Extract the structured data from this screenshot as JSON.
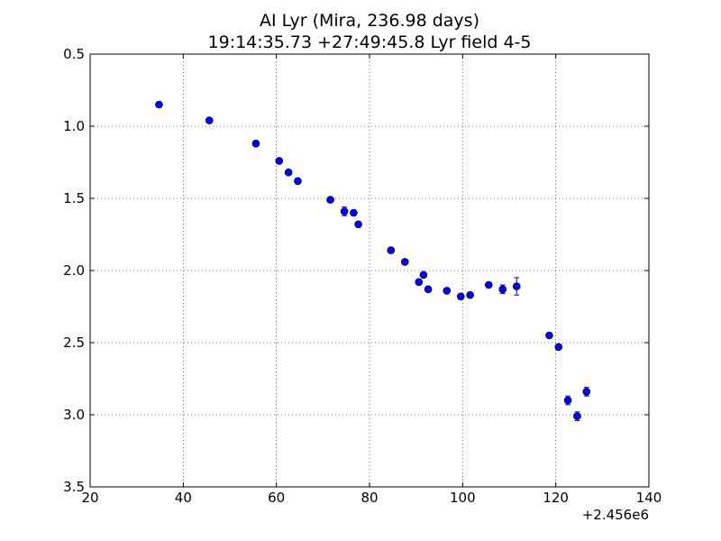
{
  "chart_data": {
    "type": "scatter",
    "title": "AI Lyr (Mira, 236.98 days)",
    "subtitle": "19:14:35.73 +27:49:45.8 Lyr field 4-5",
    "xlim": [
      20,
      140
    ],
    "ylim": [
      0.5,
      3.5
    ],
    "y_inverted": true,
    "x_offset_label": "+2.456e6",
    "x_ticks": [
      20,
      40,
      60,
      80,
      100,
      120,
      140
    ],
    "x_tick_labels": [
      "20",
      "40",
      "60",
      "80",
      "100",
      "120",
      "140"
    ],
    "y_ticks": [
      0.5,
      1.0,
      1.5,
      2.0,
      2.5,
      3.0,
      3.5
    ],
    "y_tick_labels": [
      "0.5",
      "1.0",
      "1.5",
      "2.0",
      "2.5",
      "3.0",
      "3.5"
    ],
    "grid": true,
    "marker_color": "#0000ff",
    "points": [
      {
        "x": 34.8,
        "y": 0.85,
        "err": 0.0
      },
      {
        "x": 45.6,
        "y": 0.96,
        "err": 0.0
      },
      {
        "x": 55.6,
        "y": 1.12,
        "err": 0.0
      },
      {
        "x": 60.6,
        "y": 1.24,
        "err": 0.0
      },
      {
        "x": 62.6,
        "y": 1.32,
        "err": 0.0
      },
      {
        "x": 64.6,
        "y": 1.38,
        "err": 0.0
      },
      {
        "x": 71.6,
        "y": 1.51,
        "err": 0.0
      },
      {
        "x": 74.6,
        "y": 1.59,
        "err": 0.03
      },
      {
        "x": 76.6,
        "y": 1.6,
        "err": 0.0
      },
      {
        "x": 77.6,
        "y": 1.68,
        "err": 0.0
      },
      {
        "x": 84.6,
        "y": 1.86,
        "err": 0.0
      },
      {
        "x": 87.6,
        "y": 1.94,
        "err": 0.0
      },
      {
        "x": 90.6,
        "y": 2.08,
        "err": 0.0
      },
      {
        "x": 91.6,
        "y": 2.03,
        "err": 0.0
      },
      {
        "x": 92.6,
        "y": 2.13,
        "err": 0.0
      },
      {
        "x": 96.6,
        "y": 2.14,
        "err": 0.0
      },
      {
        "x": 99.6,
        "y": 2.18,
        "err": 0.0
      },
      {
        "x": 101.6,
        "y": 2.17,
        "err": 0.0
      },
      {
        "x": 105.6,
        "y": 2.1,
        "err": 0.0
      },
      {
        "x": 108.6,
        "y": 2.13,
        "err": 0.03
      },
      {
        "x": 111.6,
        "y": 2.11,
        "err": 0.06
      },
      {
        "x": 118.6,
        "y": 2.45,
        "err": 0.0
      },
      {
        "x": 120.6,
        "y": 2.53,
        "err": 0.0
      },
      {
        "x": 122.6,
        "y": 2.9,
        "err": 0.03
      },
      {
        "x": 124.6,
        "y": 3.01,
        "err": 0.03
      },
      {
        "x": 126.6,
        "y": 2.84,
        "err": 0.03
      }
    ]
  }
}
